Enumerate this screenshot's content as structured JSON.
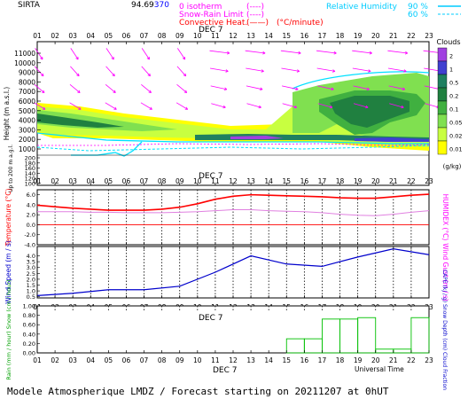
{
  "header": {
    "station": "SIRTA",
    "station_code": "94.69",
    "station_code_tail": "370",
    "legend_iso": "0 isotherm",
    "legend_snow": "Snow-Rain Limit",
    "legend_conv": "Convective Heat.",
    "conv_units": "(°C/minute)",
    "legend_rh": "Relative Humidity",
    "rh_90": "90 %",
    "rh_60": "60 %",
    "swatch_dashes": "(----)",
    "swatch_solid": "(——)"
  },
  "axis": {
    "date_label": "DEC  7",
    "universal_time": "Universal Time"
  },
  "colors": {
    "grid": "#000000",
    "wind_arrow": "#ff00ff",
    "temperature": "#ff0000",
    "humidex": "#e080e0",
    "rh_line": "#00e0ff",
    "wind_speed": "#0000cc",
    "precip_box": "#00c000",
    "cloud_levels": [
      "#ffff00",
      "#c8ff40",
      "#80e050",
      "#40b040",
      "#208040",
      "#1f8060",
      "#4040d0",
      "#a040e0"
    ]
  },
  "footer": {
    "title": "Modele Atmospherique LMDZ / Forecast starting on 20211207 at 0hUT"
  },
  "chart_data": [
    {
      "type": "heatmap",
      "title": "Clouds",
      "ylabel": "Height  (m a.s.l.)",
      "ylabel_low": "Up to 200 m a.g.l.",
      "x_ticks": [
        "01",
        "02",
        "03",
        "04",
        "05",
        "06",
        "07",
        "08",
        "09",
        "10",
        "11",
        "12",
        "13",
        "14",
        "15",
        "16",
        "17",
        "18",
        "19",
        "20",
        "21",
        "22",
        "23"
      ],
      "y_ticks_upper": [
        "11000",
        "10000",
        "9000",
        "8000",
        "7000",
        "6000",
        "5000",
        "4000",
        "3000",
        "2000",
        "1000"
      ],
      "y_ticks_lower": [
        "200",
        "180",
        "160",
        "140",
        "120",
        "100"
      ],
      "colorbar": {
        "label": "(g/kg)",
        "ticks": [
          "2",
          "1",
          "0.5",
          "0.2",
          "0.1",
          "0.05",
          "0.02",
          "0.01"
        ]
      },
      "grid": false
    },
    {
      "type": "line",
      "ylabel_left": "Temperature (°C)",
      "ylabel_right": "HUMIDEX (°C)",
      "y_ticks": [
        "6.0",
        "4.0",
        "2.0",
        "0.0",
        "-2.0",
        "-4.0"
      ],
      "ylim": [
        -4,
        7
      ],
      "x": [
        1,
        2,
        3,
        4,
        5,
        6,
        7,
        8,
        9,
        10,
        11,
        12,
        13,
        14,
        15,
        16,
        17,
        18,
        19,
        20,
        21,
        22,
        23
      ],
      "series": [
        {
          "values": [
            3.9,
            3.6,
            3.3,
            3.1,
            2.9,
            2.9,
            2.9,
            3.1,
            3.5,
            4.2,
            5.1,
            5.7,
            6.0,
            5.9,
            5.8,
            5.7,
            5.6,
            5.4,
            5.3,
            5.3,
            5.6,
            5.9,
            6.1
          ]
        },
        {
          "values": [
            2.6,
            2.6,
            2.6,
            2.5,
            2.5,
            2.4,
            2.4,
            2.4,
            2.5,
            2.6,
            2.8,
            3.0,
            3.0,
            2.8,
            2.7,
            2.6,
            2.4,
            2.1,
            1.9,
            1.8,
            2.1,
            2.5,
            2.8
          ]
        }
      ],
      "grid": true
    },
    {
      "type": "line",
      "ylabel_left": "Wind Speed (m / s)",
      "ylabel_right": "Wind Gust (m / s)",
      "y_ticks": [
        "4.0",
        "3.5",
        "3.0",
        "2.5",
        "2.0",
        "1.5",
        "1.0",
        "0.5"
      ],
      "ylim": [
        0.4,
        4.8
      ],
      "x": [
        1,
        3,
        5,
        7,
        9,
        11,
        13,
        15,
        17,
        19,
        21,
        23
      ],
      "series": [
        {
          "values": [
            0.6,
            0.8,
            1.1,
            1.1,
            1.4,
            2.6,
            4.0,
            3.3,
            3.1,
            3.9,
            4.6,
            4.1
          ]
        }
      ],
      "grid": true
    },
    {
      "type": "bar",
      "ylabel_left": "Rain (mm / hour)  Snow (cm / hour)",
      "ylabel_right": "CAPE (kJ / g)  Snow Depth (cm)  Cloud Fraction",
      "y_ticks": [
        "1.00",
        "0.80",
        "0.60",
        "0.40",
        "0.20",
        "0.00"
      ],
      "ylim": [
        0,
        1.0
      ],
      "x": [
        1,
        2,
        3,
        4,
        5,
        6,
        7,
        8,
        9,
        10,
        11,
        12,
        13,
        14,
        15,
        16,
        17,
        18,
        19,
        20,
        21,
        22,
        23
      ],
      "series": [
        {
          "values": [
            0,
            0,
            0,
            0,
            0,
            0,
            0,
            0,
            0,
            0,
            0,
            0,
            0,
            0,
            0.3,
            0.3,
            0.72,
            0.72,
            0.75,
            0.08,
            0.08,
            0.75,
            0.75
          ]
        }
      ],
      "grid": false
    }
  ]
}
